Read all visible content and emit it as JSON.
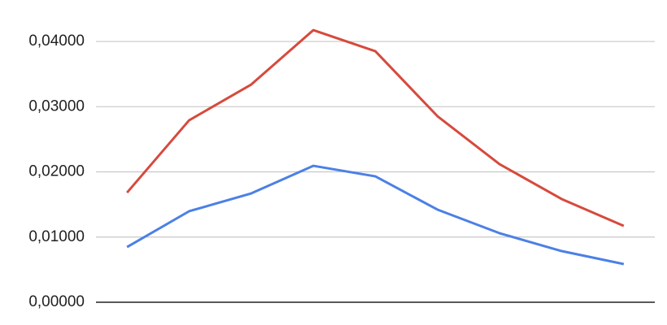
{
  "chart_data": {
    "type": "line",
    "categories": [
      null,
      null,
      null,
      null,
      null,
      null,
      null,
      null,
      null
    ],
    "series": [
      {
        "color": "#d64a3d",
        "values": [
          0.01682,
          0.02791,
          0.0334,
          0.04174,
          0.0385,
          0.02854,
          0.02118,
          0.01583,
          0.01171
        ]
      },
      {
        "color": "#4b80e6",
        "values": [
          0.00847,
          0.01396,
          0.0167,
          0.02093,
          0.01931,
          0.01421,
          0.01059,
          0.00785,
          0.00586
        ]
      }
    ],
    "ylim": [
      0,
      0.0425
    ],
    "yticks": [
      {
        "value": 0,
        "label": "0,00000"
      },
      {
        "value": 0.01,
        "label": "0,01000"
      },
      {
        "value": 0.02,
        "label": "0,02000"
      },
      {
        "value": 0.03,
        "label": "0,03000"
      },
      {
        "value": 0.04,
        "label": "0,04000"
      }
    ],
    "grid": true
  }
}
